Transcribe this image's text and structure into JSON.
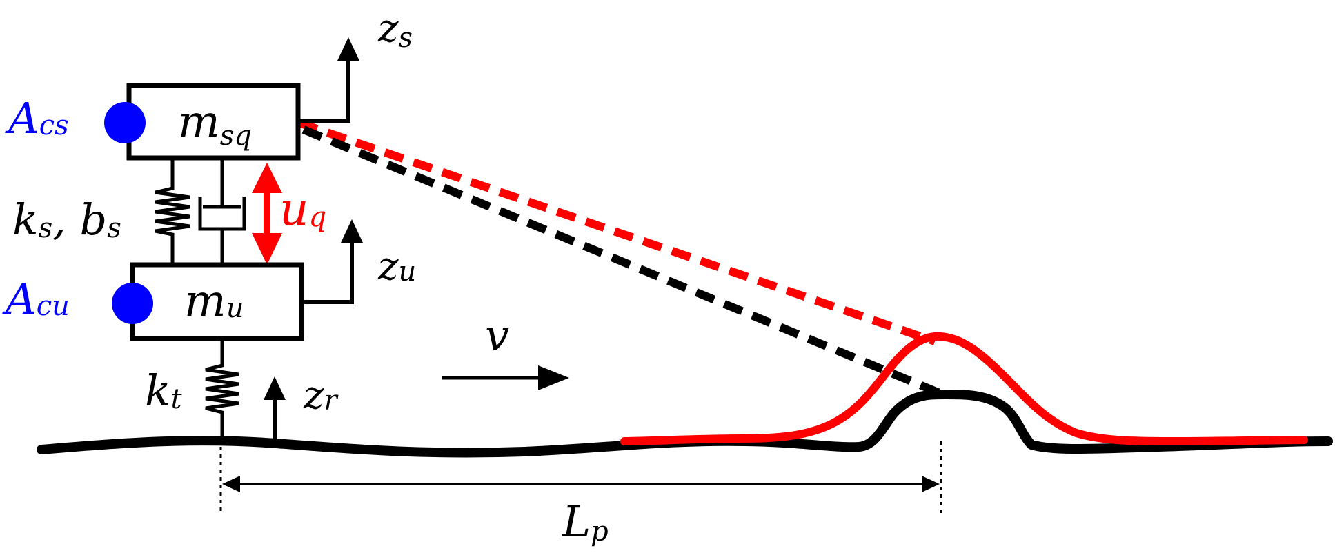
{
  "labels": {
    "sprung_mass": "m",
    "sprung_mass_sub": "sq",
    "unsprung_mass": "m",
    "unsprung_mass_sub": "u",
    "acc_sprung": "A",
    "acc_sprung_sub": "cs",
    "acc_unsprung": "A",
    "acc_unsprung_sub": "cu",
    "ks_main": "k",
    "ks_sub": "s",
    "comma": ", ",
    "bs_main": "b",
    "bs_sub": "s",
    "kt_main": "k",
    "kt_sub": "t",
    "zs_main": "z",
    "zs_sub": "s",
    "zu_main": "z",
    "zu_sub": "u",
    "zr_main": "z",
    "zr_sub": "r",
    "uq_main": "u",
    "uq_sub": "q",
    "v": "v",
    "lp_main": "L",
    "lp_sub": "p"
  },
  "colors": {
    "structure": "#000000",
    "accelerometer": "#0000ff",
    "preview": "#ff0000",
    "actuator": "#ff0000",
    "background": "#ffffff"
  },
  "icons": {
    "accelerometer": "filled-circle",
    "spring": "zigzag",
    "damper": "dashpot",
    "arrow": "triangle-arrowhead"
  }
}
